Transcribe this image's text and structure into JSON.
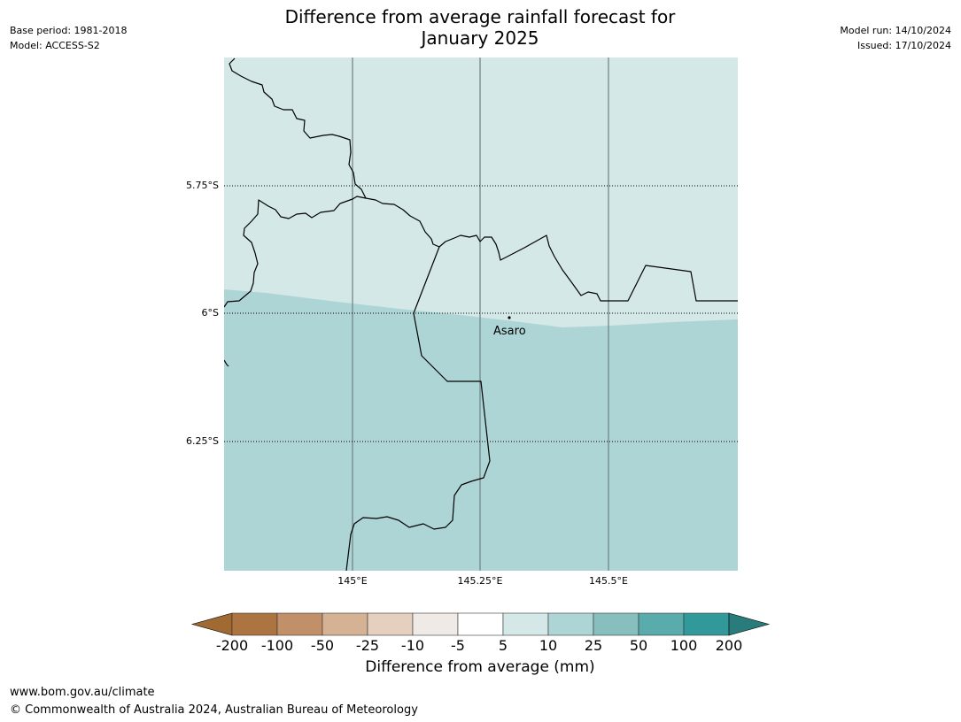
{
  "header": {
    "title_line1": "Difference from average rainfall forecast for",
    "title_line2": "January 2025",
    "base_period": "Base period: 1981-2018",
    "model": "Model: ACCESS-S2",
    "model_run": "Model run: 14/10/2024",
    "issued": "Issued: 17/10/2024"
  },
  "map": {
    "lat_labels": [
      "5.75°S",
      "6°S",
      "6.25°S"
    ],
    "lon_labels": [
      "145°E",
      "145.25°E",
      "145.5°E"
    ],
    "place_label": "Asaro",
    "fill_colors": {
      "band_5_10": "#d4e8e7",
      "band_10_25": "#aed5d6"
    }
  },
  "colorbar": {
    "label": "Difference from average (mm)",
    "ticks": [
      "-200",
      "-100",
      "-50",
      "-25",
      "-10",
      "-5",
      "5",
      "10",
      "25",
      "50",
      "100",
      "200"
    ],
    "colors": [
      "#a06a32",
      "#ac7440",
      "#c29068",
      "#d5b293",
      "#e5cfbe",
      "#efeae6",
      "#ffffff",
      "#d4e8e7",
      "#aed5d6",
      "#87bfbf",
      "#5aabac",
      "#32999a",
      "#2a7b7b"
    ]
  },
  "footer": {
    "url": "www.bom.gov.au/climate",
    "copyright": "© Commonwealth of Australia 2024, Australian Bureau of Meteorology"
  }
}
